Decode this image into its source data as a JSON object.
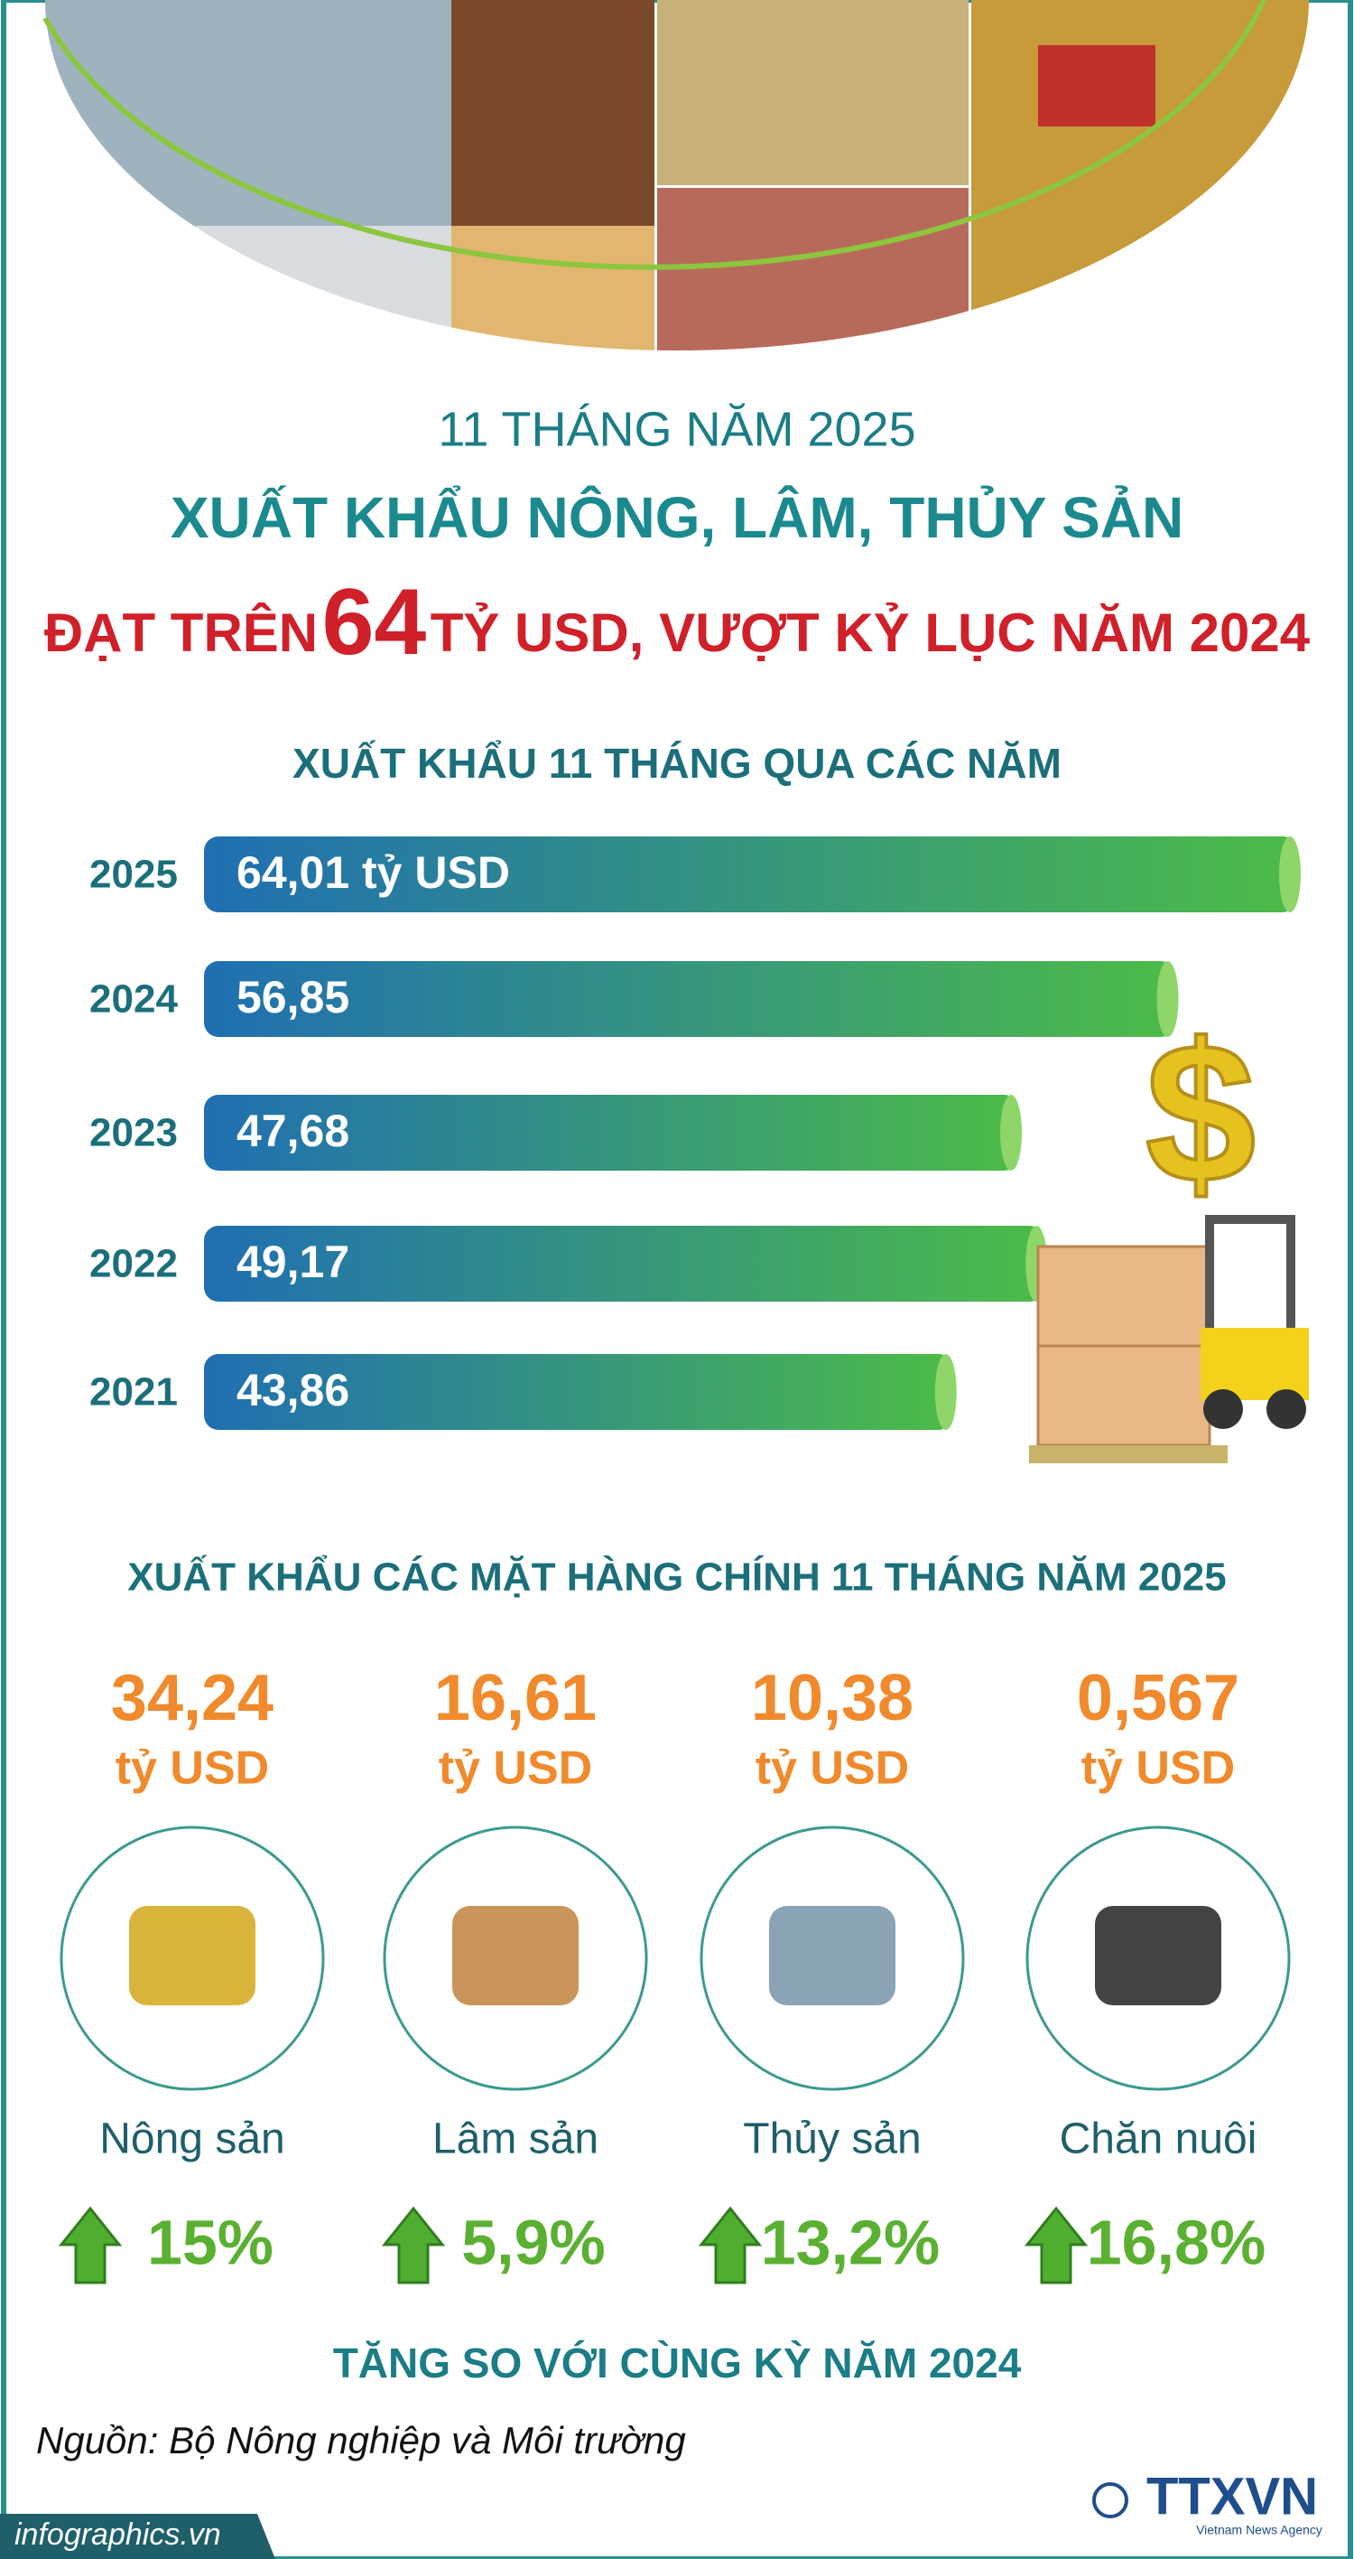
{
  "header": {
    "period": "11 THÁNG NĂM 2025",
    "title": "XUẤT KHẨU NÔNG, LÂM, THỦY SẢN",
    "subtitle_prefix": "ĐẠT TRÊN",
    "subtitle_number": "64",
    "subtitle_suffix": "TỶ USD, VƯỢT KỶ LỤC NĂM 2024"
  },
  "chart_data": {
    "type": "bar",
    "orientation": "horizontal",
    "title": "XUẤT KHẨU 11 THÁNG QUA CÁC NĂM",
    "categories": [
      "2025",
      "2024",
      "2023",
      "2022",
      "2021"
    ],
    "values": [
      64.01,
      56.85,
      47.68,
      49.17,
      43.86
    ],
    "value_labels": [
      "64,01 tỷ USD",
      "56,85",
      "47,68",
      "49,17",
      "43,86"
    ],
    "colors": [
      "#1f6fb2",
      "#4dbb48"
    ]
  },
  "products": {
    "title": "XUẤT KHẨU CÁC MẶT HÀNG CHÍNH 11 THÁNG NĂM 2025",
    "items": [
      {
        "value": "34,24",
        "unit": "tỷ USD",
        "name": "Nông sản",
        "growth": "15%"
      },
      {
        "value": "16,61",
        "unit": "tỷ USD",
        "name": "Lâm sản",
        "growth": "5,9%"
      },
      {
        "value": "10,38",
        "unit": "tỷ USD",
        "name": "Thủy sản",
        "growth": "13,2%"
      },
      {
        "value": "0,567",
        "unit": "tỷ USD",
        "name": "Chăn nuôi",
        "growth": "16,8%"
      }
    ],
    "note": "TĂNG SO VỚI CÙNG KỲ NĂM 2024"
  },
  "footer": {
    "source": "Nguồn: Bộ Nông nghiệp và Môi trường",
    "site": "infographics.vn",
    "logo": "TTXVN",
    "logo_caption": "Vietnam News Agency"
  }
}
